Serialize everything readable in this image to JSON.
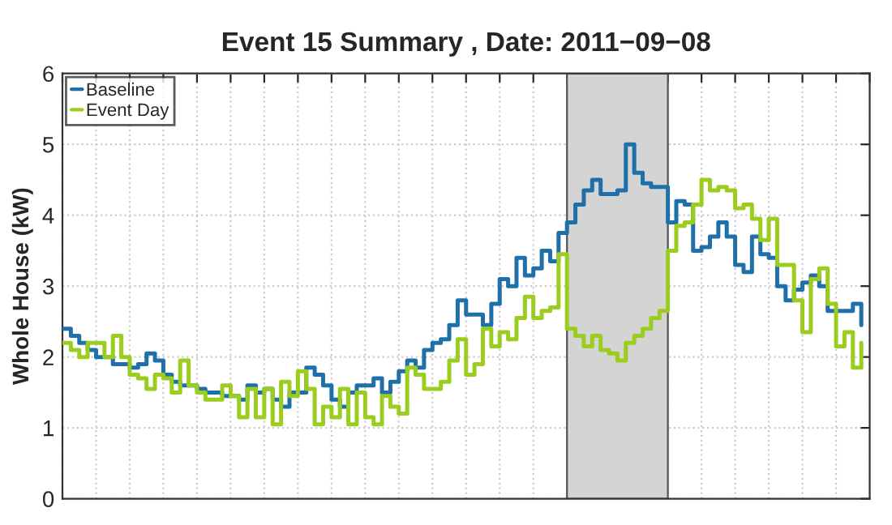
{
  "chart_data": {
    "type": "step",
    "title": "Event 15 Summary , Date: 2011−09−08",
    "ylabel": "Whole House (kW)",
    "categories": [
      null,
      null,
      null,
      null,
      null,
      null,
      null,
      null,
      null,
      null,
      null,
      null,
      null,
      null,
      null,
      null,
      null,
      null,
      null,
      null,
      null,
      null,
      null,
      null,
      null,
      null,
      null,
      null,
      null,
      null,
      null,
      null,
      null,
      null,
      null,
      null,
      null,
      null,
      null,
      null,
      null,
      null,
      null,
      null,
      null,
      null,
      null,
      null,
      null,
      null,
      null,
      null,
      null,
      null,
      null,
      null,
      null,
      null,
      null,
      null,
      null,
      null,
      null,
      null,
      null,
      null,
      null,
      null,
      null,
      null,
      null,
      null,
      null,
      null,
      null,
      null,
      null,
      null,
      null,
      null,
      null,
      null,
      null,
      null,
      null,
      null,
      null,
      null,
      null,
      null,
      null,
      null,
      null,
      null,
      null,
      null
    ],
    "series": [
      {
        "name": "Baseline",
        "color": "#1f6fa8",
        "values": [
          2.4,
          2.3,
          2.2,
          2.1,
          2.0,
          2.0,
          1.9,
          1.9,
          1.85,
          1.9,
          2.05,
          1.95,
          1.75,
          1.65,
          1.6,
          1.6,
          1.55,
          1.5,
          1.5,
          1.45,
          1.45,
          1.4,
          1.6,
          1.5,
          1.55,
          1.4,
          1.3,
          1.5,
          1.5,
          1.85,
          1.75,
          1.6,
          1.4,
          1.3,
          1.5,
          1.6,
          1.6,
          1.7,
          1.5,
          1.65,
          1.8,
          1.95,
          1.85,
          2.1,
          2.2,
          2.25,
          2.45,
          2.8,
          2.6,
          2.6,
          2.45,
          2.75,
          3.1,
          3.0,
          3.4,
          3.15,
          3.25,
          3.5,
          3.35,
          3.75,
          3.9,
          4.15,
          4.35,
          4.5,
          4.3,
          4.3,
          4.35,
          5.0,
          4.6,
          4.45,
          4.4,
          4.4,
          3.9,
          4.2,
          4.15,
          3.5,
          3.55,
          3.7,
          3.9,
          3.7,
          3.3,
          3.2,
          3.7,
          3.45,
          3.4,
          3.0,
          2.8,
          2.95,
          3.05,
          3.15,
          3.0,
          2.65,
          2.65,
          2.65,
          2.75,
          2.45
        ]
      },
      {
        "name": "Event Day",
        "color": "#9acd1e",
        "values": [
          2.2,
          2.1,
          2.0,
          2.2,
          2.2,
          2.0,
          2.3,
          2.0,
          1.75,
          1.7,
          1.55,
          1.75,
          1.7,
          1.5,
          1.95,
          1.6,
          1.5,
          1.4,
          1.4,
          1.6,
          1.45,
          1.15,
          1.55,
          1.15,
          1.55,
          1.05,
          1.65,
          1.45,
          1.8,
          1.55,
          1.05,
          1.3,
          1.15,
          1.55,
          1.05,
          1.5,
          1.15,
          1.05,
          1.45,
          1.3,
          1.2,
          1.85,
          1.75,
          1.55,
          1.55,
          1.65,
          1.95,
          2.25,
          1.75,
          1.9,
          2.4,
          2.15,
          2.35,
          2.25,
          2.55,
          2.85,
          2.55,
          2.65,
          2.7,
          3.45,
          2.4,
          2.3,
          2.15,
          2.3,
          2.1,
          2.05,
          1.95,
          2.2,
          2.3,
          2.4,
          2.55,
          2.65,
          3.5,
          3.85,
          3.9,
          4.15,
          4.5,
          4.35,
          4.4,
          4.35,
          4.1,
          4.15,
          3.95,
          3.65,
          3.95,
          3.3,
          3.3,
          2.8,
          2.35,
          3.1,
          3.25,
          2.75,
          2.15,
          2.35,
          1.85,
          2.2
        ]
      }
    ],
    "ylim": [
      0,
      6
    ],
    "yticks": [
      0,
      1,
      2,
      3,
      4,
      5,
      6
    ],
    "tick_labels": "y",
    "grid": true,
    "legend": "top left"
  }
}
